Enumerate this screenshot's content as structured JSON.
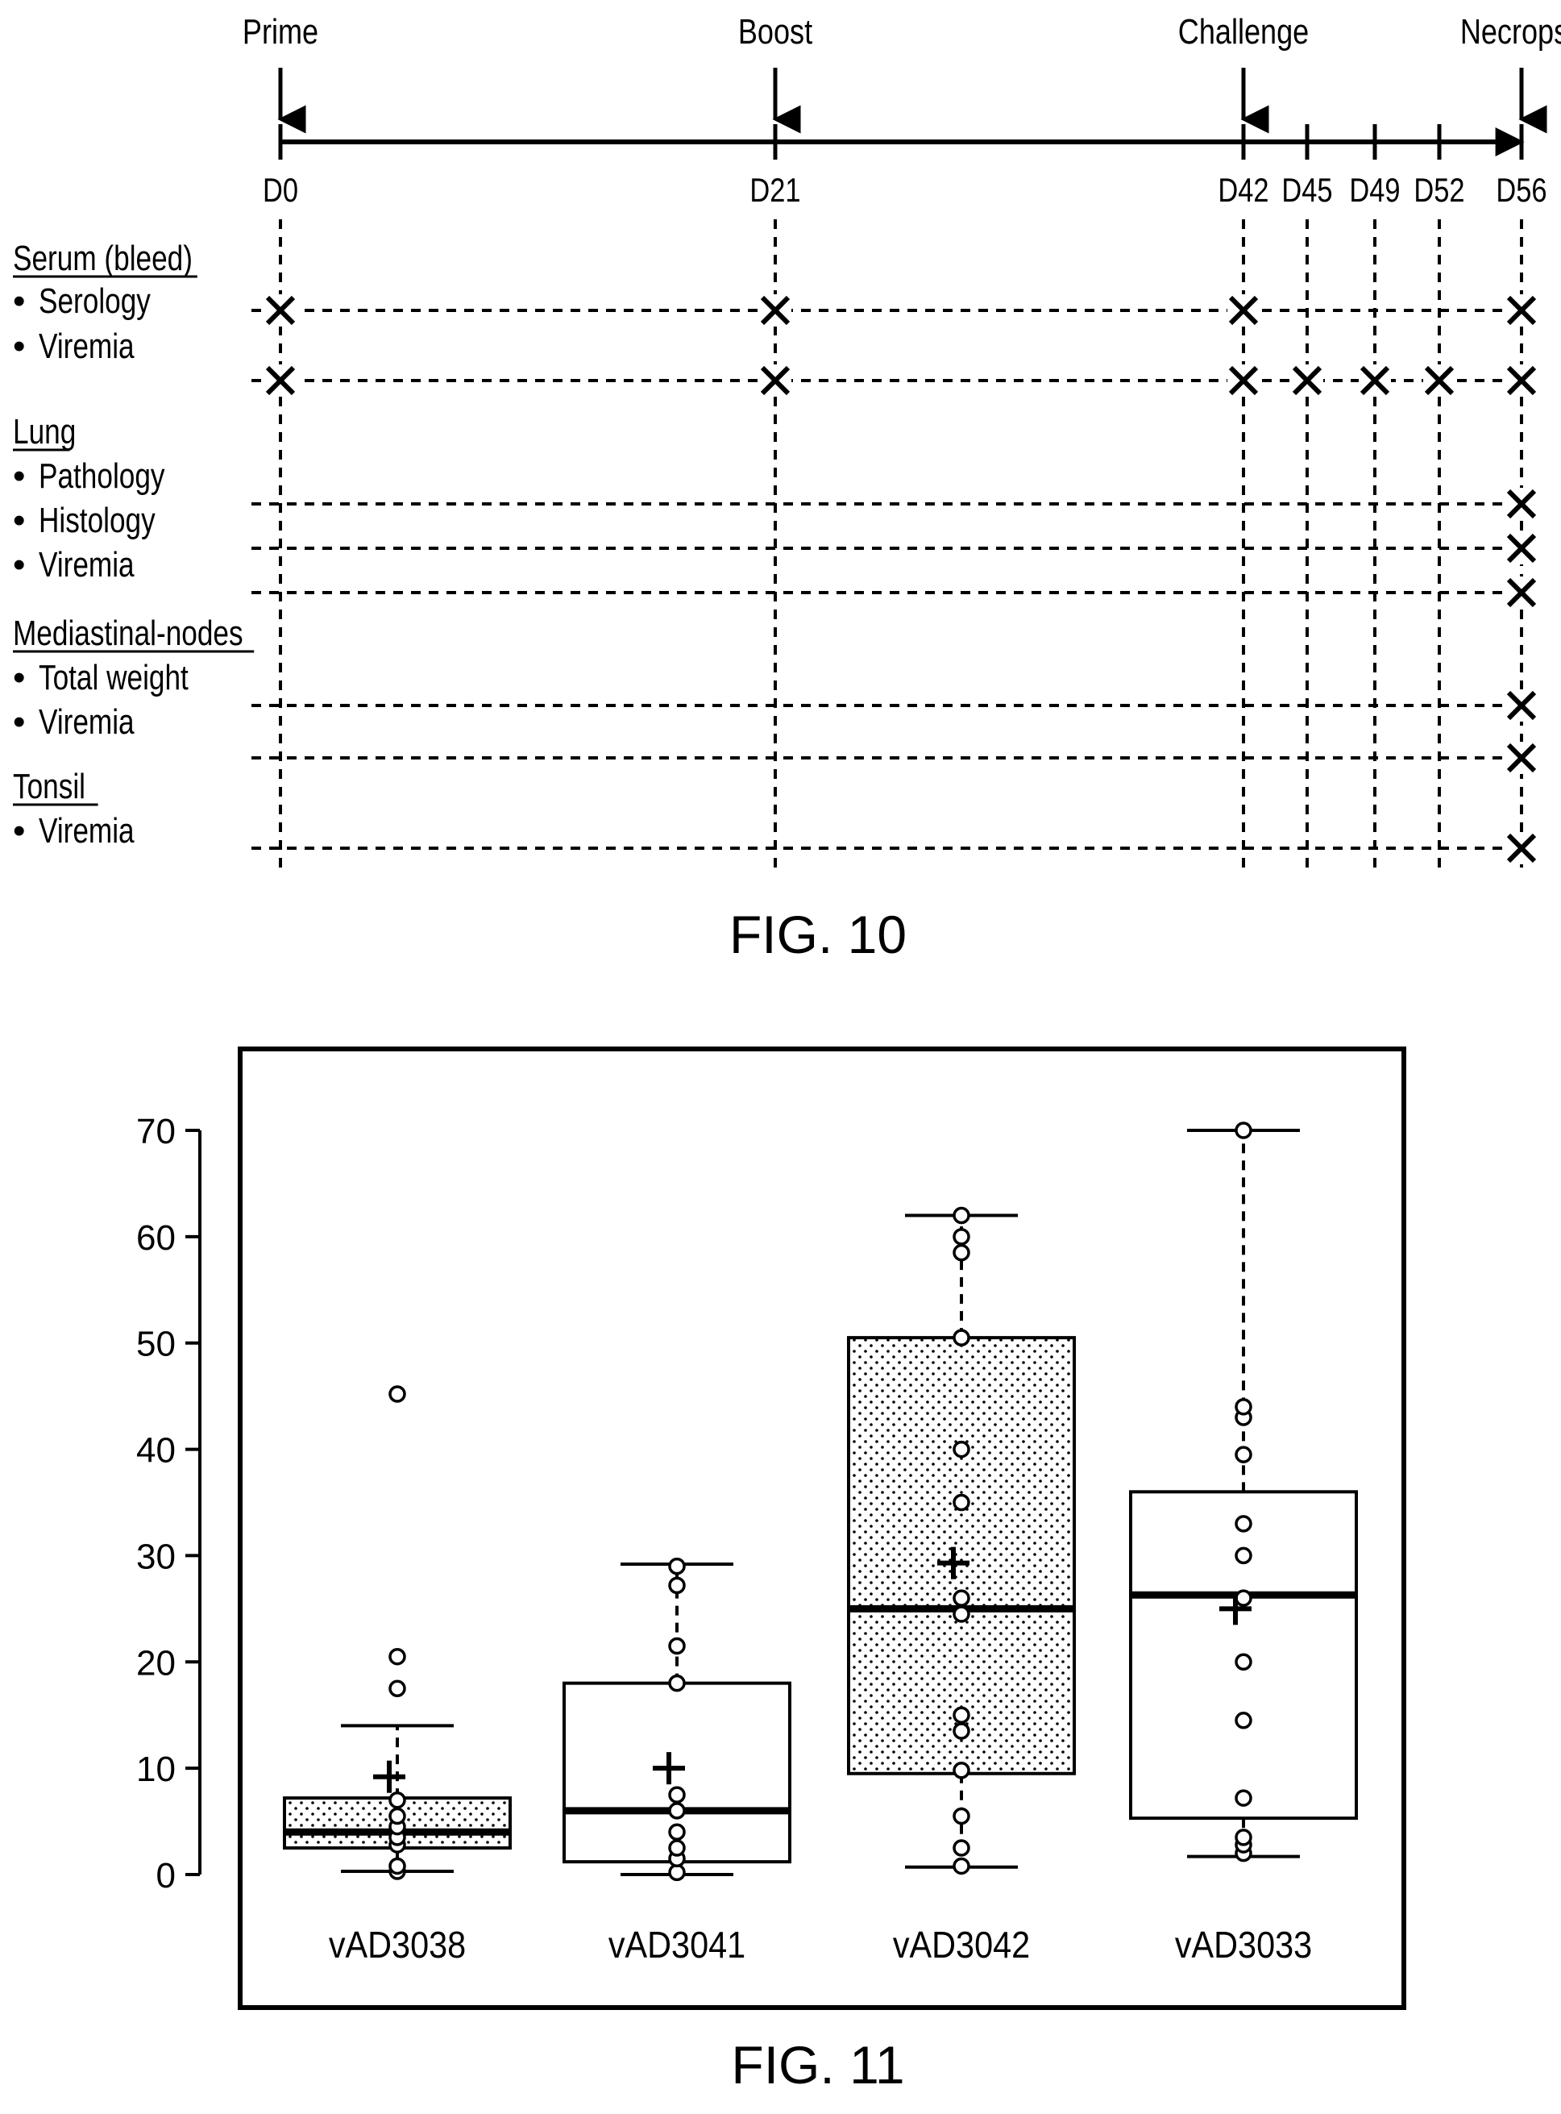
{
  "fig10": {
    "caption": "FIG. 10",
    "events": [
      {
        "label": "Prime",
        "day": "D0"
      },
      {
        "label": "Boost",
        "day": "D21"
      },
      {
        "label": "Challenge",
        "day": "D42"
      },
      {
        "label": "Necropsy",
        "day": "D56"
      }
    ],
    "days": [
      "D0",
      "D21",
      "D42",
      "D45",
      "D49",
      "D52",
      "D56"
    ],
    "sections": [
      {
        "heading": "Serum (bleed)",
        "items": [
          {
            "label": "Serology",
            "marks": [
              "D0",
              "D21",
              "D42",
              "D56"
            ]
          },
          {
            "label": "Viremia",
            "marks": [
              "D0",
              "D21",
              "D42",
              "D45",
              "D49",
              "D52",
              "D56"
            ]
          }
        ]
      },
      {
        "heading": "Lung",
        "items": [
          {
            "label": "Pathology",
            "marks": [
              "D56"
            ]
          },
          {
            "label": "Histology",
            "marks": [
              "D56"
            ]
          },
          {
            "label": "Viremia",
            "marks": [
              "D56"
            ]
          }
        ]
      },
      {
        "heading": "Mediastinal-nodes",
        "items": [
          {
            "label": "Total weight",
            "marks": [
              "D56"
            ]
          },
          {
            "label": "Viremia",
            "marks": [
              "D56"
            ]
          }
        ]
      },
      {
        "heading": "Tonsil",
        "items": [
          {
            "label": "Viremia",
            "marks": [
              "D56"
            ]
          }
        ]
      }
    ],
    "bullet": "•",
    "mark_glyph": "X"
  },
  "fig11": {
    "caption": "FIG. 11",
    "chart_data": {
      "type": "box",
      "categories": [
        "vAD3038",
        "vAD3041",
        "vAD3042",
        "vAD3033"
      ],
      "ylim": [
        0,
        70
      ],
      "yticks": [
        0,
        10,
        20,
        30,
        40,
        50,
        60,
        70
      ],
      "boxes": [
        {
          "name": "vAD3038",
          "fill": "dotted",
          "whisker_low": 0.3,
          "q1": 2.5,
          "median": 4,
          "q3": 7.2,
          "whisker_high": 14,
          "mean": 9.2,
          "points": [
            0.3,
            0.8,
            2.8,
            3.5,
            4.5,
            5.5,
            7,
            17.5,
            20.5,
            45.2
          ]
        },
        {
          "name": "vAD3041",
          "fill": "none",
          "whisker_low": 0,
          "q1": 1.2,
          "median": 6,
          "q3": 18,
          "whisker_high": 29.2,
          "mean": 10,
          "points": [
            0.2,
            1.5,
            2.5,
            4,
            6,
            7.5,
            18,
            21.5,
            27.2,
            29
          ]
        },
        {
          "name": "vAD3042",
          "fill": "dotted",
          "whisker_low": 0.7,
          "q1": 9.5,
          "median": 25,
          "q3": 50.5,
          "whisker_high": 62,
          "mean": 29.3,
          "points": [
            0.8,
            2.5,
            5.5,
            9.8,
            13.5,
            15,
            24.5,
            26,
            35,
            40,
            50.5,
            58.5,
            60,
            62
          ]
        },
        {
          "name": "vAD3033",
          "fill": "none",
          "whisker_low": 1.7,
          "q1": 5.3,
          "median": 26.3,
          "q3": 36,
          "whisker_high": 70,
          "mean": 25,
          "points": [
            2,
            2.8,
            3.5,
            7.2,
            14.5,
            20,
            26,
            30,
            33,
            39.5,
            43,
            44,
            70
          ]
        }
      ]
    }
  }
}
